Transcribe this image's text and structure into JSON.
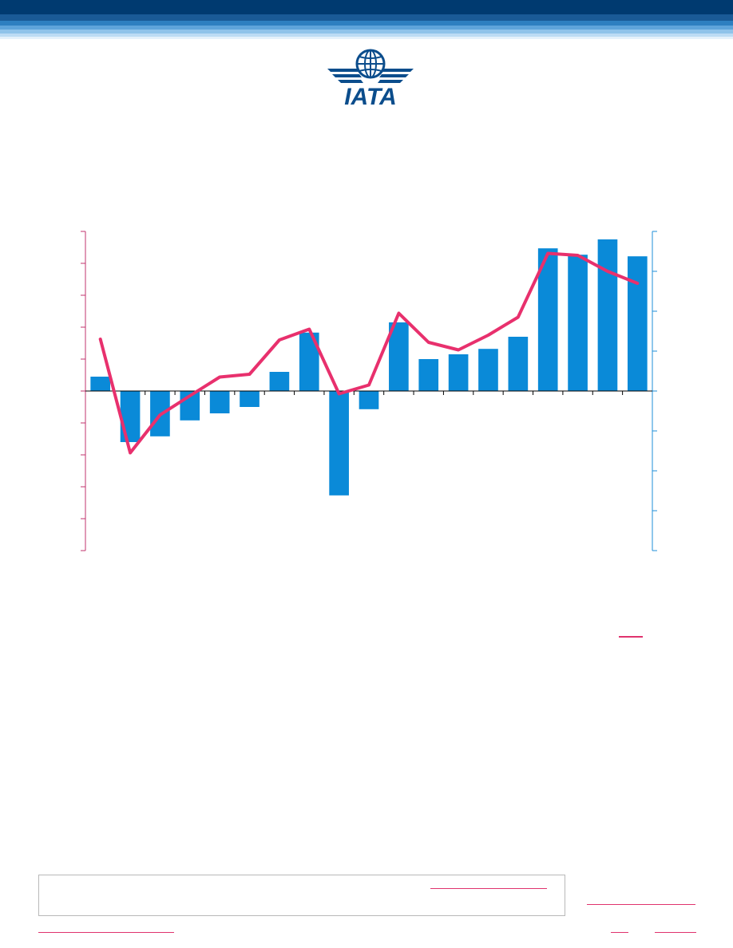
{
  "header": {
    "logo_text": "IATA",
    "colors": {
      "navy": "#003a70",
      "mid_blue": "#2e7fc0",
      "light_blue": "#8fc3ea",
      "pale_blue": "#d9ecf9"
    }
  },
  "chart_data": {
    "type": "bar",
    "title": "",
    "xlabel": "",
    "ylabel": "",
    "y2label": "",
    "grid": false,
    "left_axis": {
      "ticks": 10,
      "range": [
        -5,
        5
      ]
    },
    "right_axis": {
      "ticks": 8,
      "range": [
        -4,
        4
      ]
    },
    "series": [
      {
        "type": "bar",
        "axis": "left",
        "color": "#0a8ad8",
        "values": [
          0.45,
          -1.6,
          -1.42,
          -0.92,
          -0.7,
          -0.5,
          0.6,
          1.83,
          -3.27,
          -0.57,
          2.15,
          1.0,
          1.15,
          1.32,
          1.7,
          4.47,
          4.27,
          4.75,
          4.22
        ]
      },
      {
        "type": "line",
        "axis": "right",
        "color": "#e8306d",
        "values": [
          1.3,
          -1.55,
          -0.6,
          -0.12,
          0.35,
          0.42,
          1.28,
          1.55,
          -0.07,
          0.15,
          1.95,
          1.22,
          1.03,
          1.4,
          1.85,
          3.45,
          3.4,
          3.0,
          2.7
        ]
      }
    ]
  },
  "colors": {
    "left_axis": "#c0336e",
    "right_axis": "#1f8fd8",
    "link": "#e0336e",
    "box_border": "#b8b8b8"
  }
}
